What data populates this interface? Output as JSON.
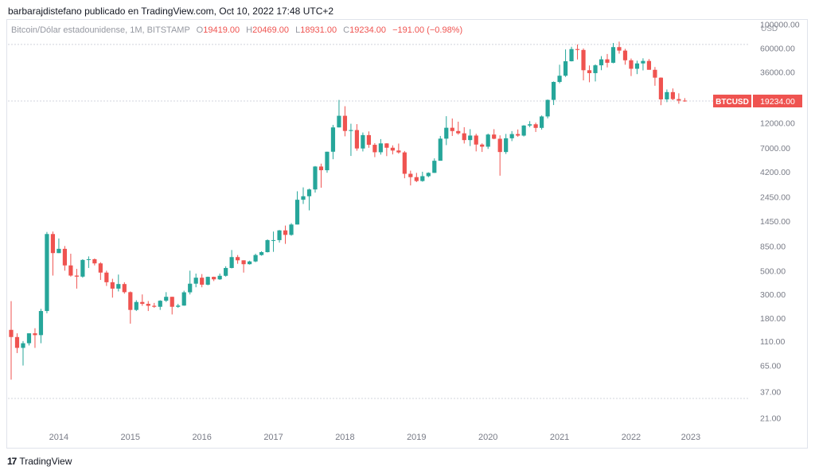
{
  "header": {
    "publisher_line": "barbarajdistefano publicado en TradingView.com, Oct 10, 2022 17:48 UTC+2"
  },
  "legend": {
    "symbol": "Bitcoin/Dólar estadounidense, 1M, BITSTAMP",
    "open_label": "O",
    "open": "19419.00",
    "high_label": "H",
    "high": "20469.00",
    "low_label": "L",
    "low": "18931.00",
    "close_label": "C",
    "close": "19234.00",
    "change": "−191.00 (−0.98%)"
  },
  "price_axis_unit": "USD",
  "price_tag": {
    "symbol": "BTCUSD",
    "value": "19234.00"
  },
  "footer": {
    "logo_text": "TradingView"
  },
  "colors": {
    "up": "#26a69a",
    "down": "#ef5350",
    "grid": "#d1d4dc",
    "text": "#131722",
    "axis_text": "#787b86"
  },
  "chart_data": {
    "type": "candlestick",
    "scale": "log",
    "ylim": [
      17,
      120000
    ],
    "y_ticks": [
      "100000.00",
      "60000.00",
      "36000.00",
      "12000.00",
      "7000.00",
      "4200.00",
      "2450.00",
      "1450.00",
      "850.00",
      "500.00",
      "300.00",
      "180.00",
      "110.00",
      "65.00",
      "37.00",
      "21.00"
    ],
    "x_ticks": [
      "2014",
      "2015",
      "2016",
      "2017",
      "2018",
      "2019",
      "2020",
      "2021",
      "2022",
      "2023"
    ],
    "horizontal_lines": [
      65000,
      19234,
      32
    ],
    "candles": [
      {
        "t": "2013-05",
        "o": 140,
        "h": 260,
        "l": 48,
        "c": 120
      },
      {
        "t": "2013-06",
        "o": 120,
        "h": 130,
        "l": 85,
        "c": 95
      },
      {
        "t": "2013-07",
        "o": 95,
        "h": 110,
        "l": 65,
        "c": 105
      },
      {
        "t": "2013-08",
        "o": 105,
        "h": 130,
        "l": 100,
        "c": 130
      },
      {
        "t": "2013-09",
        "o": 130,
        "h": 145,
        "l": 95,
        "c": 125
      },
      {
        "t": "2013-10",
        "o": 125,
        "h": 220,
        "l": 105,
        "c": 210
      },
      {
        "t": "2013-11",
        "o": 210,
        "h": 1150,
        "l": 200,
        "c": 1100
      },
      {
        "t": "2013-12",
        "o": 1100,
        "h": 1160,
        "l": 450,
        "c": 730
      },
      {
        "t": "2014-01",
        "o": 730,
        "h": 1000,
        "l": 730,
        "c": 800
      },
      {
        "t": "2014-02",
        "o": 800,
        "h": 850,
        "l": 500,
        "c": 560
      },
      {
        "t": "2014-03",
        "o": 560,
        "h": 720,
        "l": 440,
        "c": 450
      },
      {
        "t": "2014-04",
        "o": 450,
        "h": 520,
        "l": 340,
        "c": 440
      },
      {
        "t": "2014-05",
        "o": 440,
        "h": 640,
        "l": 430,
        "c": 630
      },
      {
        "t": "2014-06",
        "o": 630,
        "h": 680,
        "l": 530,
        "c": 640
      },
      {
        "t": "2014-07",
        "o": 640,
        "h": 650,
        "l": 560,
        "c": 585
      },
      {
        "t": "2014-08",
        "o": 585,
        "h": 600,
        "l": 410,
        "c": 480
      },
      {
        "t": "2014-09",
        "o": 480,
        "h": 500,
        "l": 360,
        "c": 390
      },
      {
        "t": "2014-10",
        "o": 390,
        "h": 420,
        "l": 280,
        "c": 340
      },
      {
        "t": "2014-11",
        "o": 340,
        "h": 460,
        "l": 320,
        "c": 375
      },
      {
        "t": "2014-12",
        "o": 375,
        "h": 390,
        "l": 305,
        "c": 315
      },
      {
        "t": "2015-01",
        "o": 315,
        "h": 320,
        "l": 160,
        "c": 215
      },
      {
        "t": "2015-02",
        "o": 215,
        "h": 265,
        "l": 210,
        "c": 255
      },
      {
        "t": "2015-03",
        "o": 255,
        "h": 300,
        "l": 235,
        "c": 245
      },
      {
        "t": "2015-04",
        "o": 245,
        "h": 260,
        "l": 210,
        "c": 235
      },
      {
        "t": "2015-05",
        "o": 235,
        "h": 250,
        "l": 225,
        "c": 230
      },
      {
        "t": "2015-06",
        "o": 230,
        "h": 265,
        "l": 215,
        "c": 262
      },
      {
        "t": "2015-07",
        "o": 262,
        "h": 315,
        "l": 255,
        "c": 285
      },
      {
        "t": "2015-08",
        "o": 285,
        "h": 285,
        "l": 195,
        "c": 230
      },
      {
        "t": "2015-09",
        "o": 230,
        "h": 245,
        "l": 225,
        "c": 236
      },
      {
        "t": "2015-10",
        "o": 236,
        "h": 325,
        "l": 235,
        "c": 314
      },
      {
        "t": "2015-11",
        "o": 314,
        "h": 500,
        "l": 300,
        "c": 378
      },
      {
        "t": "2015-12",
        "o": 378,
        "h": 470,
        "l": 350,
        "c": 430
      },
      {
        "t": "2016-01",
        "o": 430,
        "h": 465,
        "l": 350,
        "c": 370
      },
      {
        "t": "2016-02",
        "o": 370,
        "h": 440,
        "l": 365,
        "c": 438
      },
      {
        "t": "2016-03",
        "o": 438,
        "h": 440,
        "l": 400,
        "c": 415
      },
      {
        "t": "2016-04",
        "o": 415,
        "h": 470,
        "l": 410,
        "c": 448
      },
      {
        "t": "2016-05",
        "o": 448,
        "h": 550,
        "l": 440,
        "c": 530
      },
      {
        "t": "2016-06",
        "o": 530,
        "h": 780,
        "l": 525,
        "c": 670
      },
      {
        "t": "2016-07",
        "o": 670,
        "h": 700,
        "l": 580,
        "c": 625
      },
      {
        "t": "2016-08",
        "o": 625,
        "h": 625,
        "l": 480,
        "c": 575
      },
      {
        "t": "2016-09",
        "o": 575,
        "h": 620,
        "l": 570,
        "c": 610
      },
      {
        "t": "2016-10",
        "o": 610,
        "h": 720,
        "l": 600,
        "c": 700
      },
      {
        "t": "2016-11",
        "o": 700,
        "h": 760,
        "l": 690,
        "c": 745
      },
      {
        "t": "2016-12",
        "o": 745,
        "h": 980,
        "l": 740,
        "c": 965
      },
      {
        "t": "2017-01",
        "o": 965,
        "h": 1160,
        "l": 750,
        "c": 965
      },
      {
        "t": "2017-02",
        "o": 965,
        "h": 1200,
        "l": 915,
        "c": 1190
      },
      {
        "t": "2017-03",
        "o": 1190,
        "h": 1320,
        "l": 890,
        "c": 1080
      },
      {
        "t": "2017-04",
        "o": 1080,
        "h": 1390,
        "l": 1060,
        "c": 1350
      },
      {
        "t": "2017-05",
        "o": 1350,
        "h": 2760,
        "l": 1350,
        "c": 2300
      },
      {
        "t": "2017-06",
        "o": 2300,
        "h": 3000,
        "l": 2100,
        "c": 2480
      },
      {
        "t": "2017-07",
        "o": 2480,
        "h": 2920,
        "l": 1830,
        "c": 2870
      },
      {
        "t": "2017-08",
        "o": 2870,
        "h": 4750,
        "l": 2680,
        "c": 4700
      },
      {
        "t": "2017-09",
        "o": 4700,
        "h": 5000,
        "l": 2980,
        "c": 4340
      },
      {
        "t": "2017-10",
        "o": 4340,
        "h": 6470,
        "l": 4110,
        "c": 6460
      },
      {
        "t": "2017-11",
        "o": 6460,
        "h": 11500,
        "l": 5500,
        "c": 10900
      },
      {
        "t": "2017-12",
        "o": 10900,
        "h": 19700,
        "l": 10900,
        "c": 14000
      },
      {
        "t": "2018-01",
        "o": 14000,
        "h": 17200,
        "l": 9000,
        "c": 10100
      },
      {
        "t": "2018-02",
        "o": 10100,
        "h": 11800,
        "l": 5900,
        "c": 10300
      },
      {
        "t": "2018-03",
        "o": 10300,
        "h": 11700,
        "l": 6600,
        "c": 6930
      },
      {
        "t": "2018-04",
        "o": 6930,
        "h": 9770,
        "l": 6500,
        "c": 9240
      },
      {
        "t": "2018-05",
        "o": 9240,
        "h": 10000,
        "l": 7030,
        "c": 7500
      },
      {
        "t": "2018-06",
        "o": 7500,
        "h": 7780,
        "l": 5750,
        "c": 6390
      },
      {
        "t": "2018-07",
        "o": 6390,
        "h": 8480,
        "l": 6070,
        "c": 7730
      },
      {
        "t": "2018-08",
        "o": 7730,
        "h": 7760,
        "l": 5880,
        "c": 7040
      },
      {
        "t": "2018-09",
        "o": 7040,
        "h": 7410,
        "l": 6100,
        "c": 6630
      },
      {
        "t": "2018-10",
        "o": 6630,
        "h": 7700,
        "l": 6200,
        "c": 6370
      },
      {
        "t": "2018-11",
        "o": 6370,
        "h": 6560,
        "l": 3650,
        "c": 4020
      },
      {
        "t": "2018-12",
        "o": 4020,
        "h": 4300,
        "l": 3130,
        "c": 3740
      },
      {
        "t": "2019-01",
        "o": 3740,
        "h": 4100,
        "l": 3360,
        "c": 3440
      },
      {
        "t": "2019-02",
        "o": 3440,
        "h": 4200,
        "l": 3390,
        "c": 3820
      },
      {
        "t": "2019-03",
        "o": 3820,
        "h": 4150,
        "l": 3730,
        "c": 4100
      },
      {
        "t": "2019-04",
        "o": 4100,
        "h": 5600,
        "l": 4090,
        "c": 5320
      },
      {
        "t": "2019-05",
        "o": 5320,
        "h": 9070,
        "l": 5330,
        "c": 8560
      },
      {
        "t": "2019-06",
        "o": 8560,
        "h": 13880,
        "l": 7450,
        "c": 10820
      },
      {
        "t": "2019-07",
        "o": 10820,
        "h": 13200,
        "l": 9070,
        "c": 10080
      },
      {
        "t": "2019-08",
        "o": 10080,
        "h": 12330,
        "l": 9330,
        "c": 9600
      },
      {
        "t": "2019-09",
        "o": 9600,
        "h": 10950,
        "l": 7710,
        "c": 8300
      },
      {
        "t": "2019-10",
        "o": 8300,
        "h": 10500,
        "l": 7300,
        "c": 9150
      },
      {
        "t": "2019-11",
        "o": 9150,
        "h": 9510,
        "l": 6510,
        "c": 7540
      },
      {
        "t": "2019-12",
        "o": 7540,
        "h": 7740,
        "l": 6430,
        "c": 7200
      },
      {
        "t": "2020-01",
        "o": 7200,
        "h": 9550,
        "l": 6860,
        "c": 9350
      },
      {
        "t": "2020-02",
        "o": 9350,
        "h": 10500,
        "l": 8450,
        "c": 8540
      },
      {
        "t": "2020-03",
        "o": 8540,
        "h": 9190,
        "l": 3860,
        "c": 6420
      },
      {
        "t": "2020-04",
        "o": 6420,
        "h": 9470,
        "l": 6160,
        "c": 8630
      },
      {
        "t": "2020-05",
        "o": 8630,
        "h": 10070,
        "l": 8120,
        "c": 9450
      },
      {
        "t": "2020-06",
        "o": 9450,
        "h": 10430,
        "l": 8900,
        "c": 9140
      },
      {
        "t": "2020-07",
        "o": 9140,
        "h": 11450,
        "l": 8970,
        "c": 11350
      },
      {
        "t": "2020-08",
        "o": 11350,
        "h": 12480,
        "l": 10950,
        "c": 11660
      },
      {
        "t": "2020-09",
        "o": 11660,
        "h": 12070,
        "l": 9880,
        "c": 10790
      },
      {
        "t": "2020-10",
        "o": 10790,
        "h": 14100,
        "l": 10400,
        "c": 13800
      },
      {
        "t": "2020-11",
        "o": 13800,
        "h": 19860,
        "l": 13240,
        "c": 19700
      },
      {
        "t": "2020-12",
        "o": 19700,
        "h": 29300,
        "l": 17640,
        "c": 28990
      },
      {
        "t": "2021-01",
        "o": 28990,
        "h": 41990,
        "l": 28150,
        "c": 33140
      },
      {
        "t": "2021-02",
        "o": 33140,
        "h": 58350,
        "l": 32300,
        "c": 45240
      },
      {
        "t": "2021-03",
        "o": 45240,
        "h": 61780,
        "l": 45050,
        "c": 58800
      },
      {
        "t": "2021-04",
        "o": 58800,
        "h": 64900,
        "l": 47000,
        "c": 57700
      },
      {
        "t": "2021-05",
        "o": 57700,
        "h": 59600,
        "l": 30000,
        "c": 37300
      },
      {
        "t": "2021-06",
        "o": 37300,
        "h": 41330,
        "l": 28800,
        "c": 35040
      },
      {
        "t": "2021-07",
        "o": 35040,
        "h": 42320,
        "l": 29300,
        "c": 41460
      },
      {
        "t": "2021-08",
        "o": 41460,
        "h": 50500,
        "l": 37330,
        "c": 47150
      },
      {
        "t": "2021-09",
        "o": 47150,
        "h": 52950,
        "l": 39600,
        "c": 43790
      },
      {
        "t": "2021-10",
        "o": 43790,
        "h": 67000,
        "l": 43300,
        "c": 61350
      },
      {
        "t": "2021-11",
        "o": 61350,
        "h": 69000,
        "l": 53250,
        "c": 56900
      },
      {
        "t": "2021-12",
        "o": 56900,
        "h": 59100,
        "l": 42000,
        "c": 46200
      },
      {
        "t": "2022-01",
        "o": 46200,
        "h": 47990,
        "l": 32900,
        "c": 38480
      },
      {
        "t": "2022-02",
        "o": 38480,
        "h": 45800,
        "l": 34300,
        "c": 43190
      },
      {
        "t": "2022-03",
        "o": 43190,
        "h": 48200,
        "l": 37170,
        "c": 45540
      },
      {
        "t": "2022-04",
        "o": 45540,
        "h": 47440,
        "l": 37700,
        "c": 37640
      },
      {
        "t": "2022-05",
        "o": 37640,
        "h": 40000,
        "l": 26700,
        "c": 31790
      },
      {
        "t": "2022-06",
        "o": 31790,
        "h": 31970,
        "l": 17600,
        "c": 19930
      },
      {
        "t": "2022-07",
        "o": 19930,
        "h": 24670,
        "l": 18780,
        "c": 23300
      },
      {
        "t": "2022-08",
        "o": 23300,
        "h": 25200,
        "l": 19560,
        "c": 20050
      },
      {
        "t": "2022-09",
        "o": 20050,
        "h": 22700,
        "l": 18150,
        "c": 19420
      },
      {
        "t": "2022-10",
        "o": 19419,
        "h": 20469,
        "l": 18931,
        "c": 19234
      }
    ]
  }
}
